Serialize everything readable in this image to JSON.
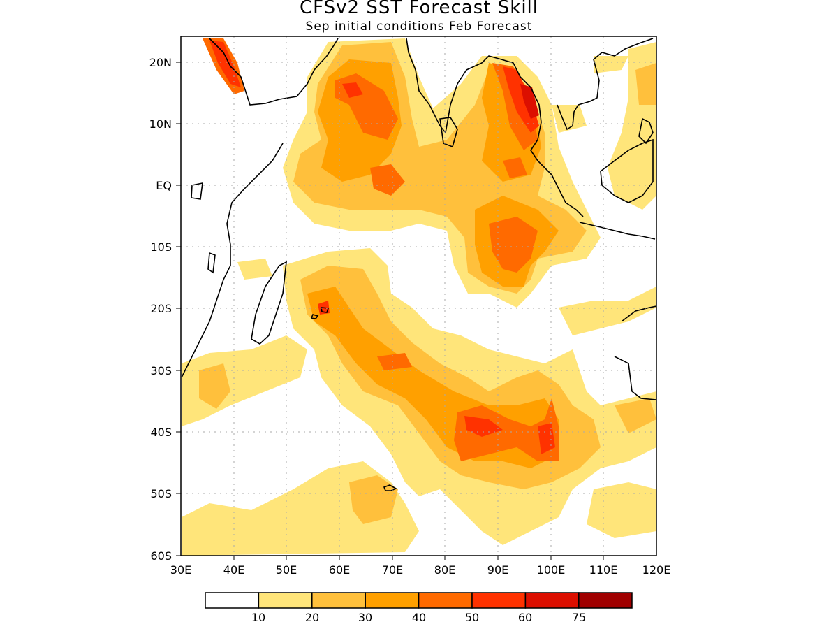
{
  "title": "CFSv2 SST Forecast Skill",
  "subtitle": "Sep initial conditions  Feb Forecast",
  "map": {
    "region": "Indian Ocean",
    "lon_range": [
      30,
      120
    ],
    "lat_range": [
      -60,
      24
    ],
    "lat_labels": [
      "20N",
      "10N",
      "EQ",
      "10S",
      "20S",
      "30S",
      "40S",
      "50S",
      "60S"
    ],
    "lon_labels": [
      "30E",
      "40E",
      "50E",
      "60E",
      "70E",
      "80E",
      "90E",
      "100E",
      "110E",
      "120E"
    ],
    "grid": "dotted"
  },
  "colorbar": {
    "labels": [
      "10",
      "20",
      "30",
      "40",
      "50",
      "60",
      "75"
    ],
    "colors": [
      "#ffffff",
      "#ffe57a",
      "#ffc03c",
      "#ffa000",
      "#ff6a00",
      "#ff3200",
      "#dc0f00",
      "#a00000"
    ]
  }
}
